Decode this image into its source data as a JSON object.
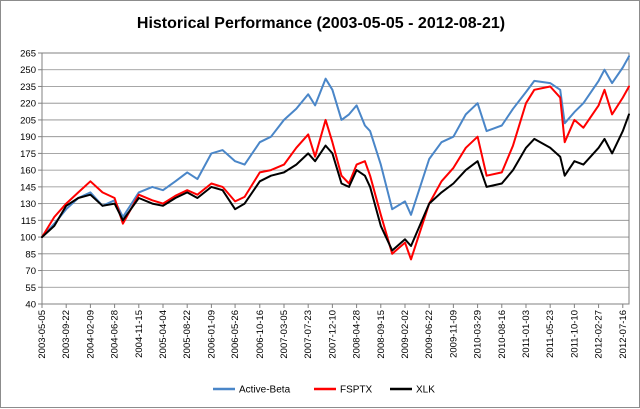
{
  "chart_data": {
    "type": "line",
    "title": "Historical Performance (2003-05-05 - 2012-08-21)",
    "xlabel": "",
    "ylabel": "",
    "ylim": [
      40,
      265
    ],
    "yticks": [
      40,
      55,
      70,
      85,
      100,
      115,
      130,
      145,
      160,
      175,
      190,
      205,
      220,
      235,
      250,
      265
    ],
    "xticks": [
      "2003-05-05",
      "2003-09-22",
      "2004-02-09",
      "2004-06-28",
      "2004-11-15",
      "2005-04-04",
      "2005-08-22",
      "2006-01-09",
      "2006-05-26",
      "2006-10-16",
      "2007-03-05",
      "2007-07-23",
      "2007-12-10",
      "2008-04-28",
      "2008-09-15",
      "2009-02-02",
      "2009-06-22",
      "2009-11-09",
      "2010-03-29",
      "2010-08-16",
      "2011-01-03",
      "2011-05-23",
      "2011-10-10",
      "2012-02-27",
      "2012-07-16"
    ],
    "grid": true,
    "legend_position": "bottom",
    "series": [
      {
        "name": "Active-Beta",
        "color": "#4a86c8",
        "x": [
          "2003-05-05",
          "2003-07-15",
          "2003-09-22",
          "2003-12-01",
          "2004-02-09",
          "2004-04-19",
          "2004-06-28",
          "2004-08-15",
          "2004-11-15",
          "2005-02-01",
          "2005-04-04",
          "2005-06-15",
          "2005-08-22",
          "2005-10-20",
          "2006-01-09",
          "2006-03-15",
          "2006-05-26",
          "2006-07-20",
          "2006-10-16",
          "2006-12-20",
          "2007-03-05",
          "2007-05-15",
          "2007-07-23",
          "2007-09-01",
          "2007-11-01",
          "2007-12-10",
          "2008-02-01",
          "2008-03-15",
          "2008-04-28",
          "2008-06-15",
          "2008-07-15",
          "2008-09-15",
          "2008-11-20",
          "2009-02-02",
          "2009-03-09",
          "2009-06-22",
          "2009-09-01",
          "2009-11-09",
          "2010-01-20",
          "2010-03-29",
          "2010-05-20",
          "2010-08-16",
          "2010-10-20",
          "2011-01-03",
          "2011-02-20",
          "2011-05-23",
          "2011-07-20",
          "2011-08-15",
          "2011-10-10",
          "2011-12-01",
          "2012-02-27",
          "2012-04-01",
          "2012-05-15",
          "2012-07-16",
          "2012-08-21"
        ],
        "values": [
          100,
          112,
          125,
          135,
          140,
          128,
          133,
          118,
          140,
          145,
          142,
          150,
          158,
          152,
          175,
          178,
          168,
          165,
          185,
          190,
          205,
          215,
          228,
          218,
          242,
          232,
          205,
          210,
          218,
          200,
          195,
          165,
          125,
          132,
          120,
          170,
          185,
          190,
          210,
          220,
          195,
          200,
          215,
          230,
          240,
          238,
          232,
          202,
          212,
          220,
          240,
          250,
          238,
          252,
          262
        ]
      },
      {
        "name": "FSPTX",
        "color": "#ff0000",
        "x": [
          "2003-05-05",
          "2003-07-15",
          "2003-09-22",
          "2003-12-01",
          "2004-02-09",
          "2004-04-19",
          "2004-06-28",
          "2004-08-15",
          "2004-11-15",
          "2005-02-01",
          "2005-04-04",
          "2005-06-15",
          "2005-08-22",
          "2005-10-20",
          "2006-01-09",
          "2006-03-15",
          "2006-05-26",
          "2006-07-20",
          "2006-10-16",
          "2006-12-20",
          "2007-03-05",
          "2007-05-15",
          "2007-07-23",
          "2007-09-01",
          "2007-11-01",
          "2007-12-10",
          "2008-02-01",
          "2008-03-15",
          "2008-04-28",
          "2008-06-15",
          "2008-07-15",
          "2008-09-15",
          "2008-11-20",
          "2009-02-02",
          "2009-03-09",
          "2009-06-22",
          "2009-09-01",
          "2009-11-09",
          "2010-01-20",
          "2010-03-29",
          "2010-05-20",
          "2010-08-16",
          "2010-10-20",
          "2011-01-03",
          "2011-02-20",
          "2011-05-23",
          "2011-07-20",
          "2011-08-15",
          "2011-10-10",
          "2011-12-01",
          "2012-02-27",
          "2012-04-01",
          "2012-05-15",
          "2012-07-16",
          "2012-08-21"
        ],
        "values": [
          100,
          118,
          130,
          140,
          150,
          140,
          135,
          112,
          138,
          133,
          130,
          137,
          142,
          138,
          148,
          145,
          132,
          136,
          158,
          160,
          165,
          180,
          192,
          172,
          205,
          185,
          155,
          148,
          165,
          168,
          155,
          120,
          85,
          95,
          80,
          130,
          150,
          162,
          180,
          190,
          155,
          158,
          182,
          220,
          232,
          235,
          225,
          185,
          205,
          198,
          218,
          232,
          210,
          225,
          235
        ]
      },
      {
        "name": "XLK",
        "color": "#000000",
        "x": [
          "2003-05-05",
          "2003-07-15",
          "2003-09-22",
          "2003-12-01",
          "2004-02-09",
          "2004-04-19",
          "2004-06-28",
          "2004-08-15",
          "2004-11-15",
          "2005-02-01",
          "2005-04-04",
          "2005-06-15",
          "2005-08-22",
          "2005-10-20",
          "2006-01-09",
          "2006-03-15",
          "2006-05-26",
          "2006-07-20",
          "2006-10-16",
          "2006-12-20",
          "2007-03-05",
          "2007-05-15",
          "2007-07-23",
          "2007-09-01",
          "2007-11-01",
          "2007-12-10",
          "2008-02-01",
          "2008-03-15",
          "2008-04-28",
          "2008-06-15",
          "2008-07-15",
          "2008-09-15",
          "2008-11-20",
          "2009-02-02",
          "2009-03-09",
          "2009-06-22",
          "2009-09-01",
          "2009-11-09",
          "2010-01-20",
          "2010-03-29",
          "2010-05-20",
          "2010-08-16",
          "2010-10-20",
          "2011-01-03",
          "2011-02-20",
          "2011-05-23",
          "2011-07-20",
          "2011-08-15",
          "2011-10-10",
          "2011-12-01",
          "2012-02-27",
          "2012-04-01",
          "2012-05-15",
          "2012-07-16",
          "2012-08-21"
        ],
        "values": [
          100,
          110,
          128,
          135,
          138,
          128,
          130,
          115,
          135,
          130,
          128,
          135,
          140,
          135,
          145,
          142,
          125,
          130,
          150,
          155,
          158,
          165,
          175,
          168,
          182,
          175,
          148,
          145,
          160,
          155,
          145,
          110,
          88,
          98,
          92,
          130,
          140,
          148,
          160,
          168,
          145,
          148,
          160,
          180,
          188,
          180,
          172,
          155,
          168,
          165,
          180,
          188,
          175,
          195,
          210
        ]
      }
    ]
  }
}
